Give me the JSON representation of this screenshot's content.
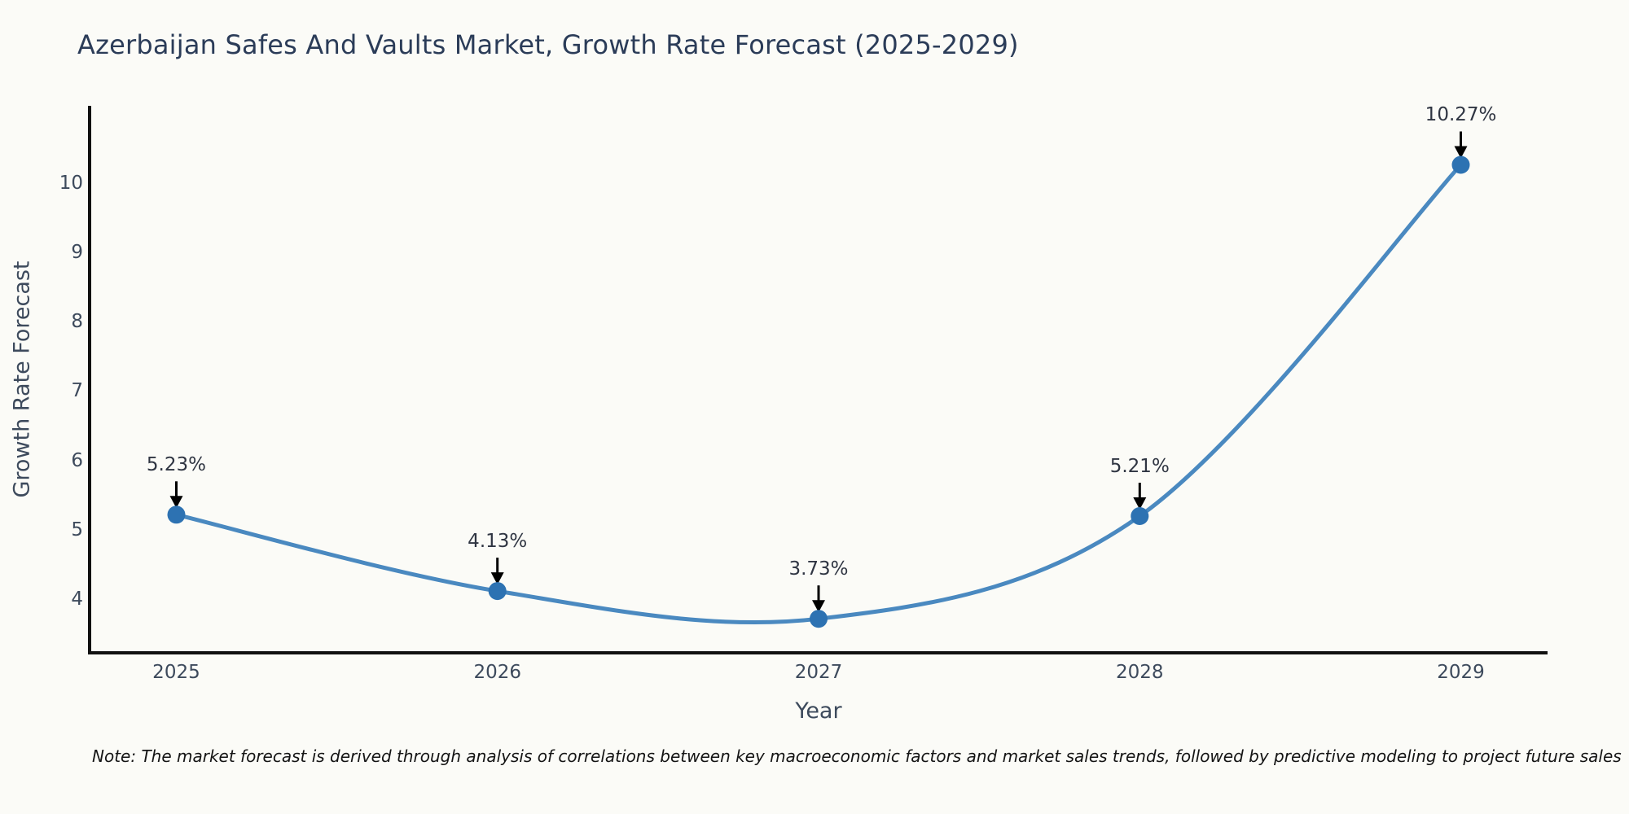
{
  "title": "Azerbaijan Safes And Vaults Market, Growth Rate Forecast (2025-2029)",
  "note": "Note: The market forecast is derived through analysis of correlations between key macroeconomic factors and market sales trends, followed by predictive modeling to project future sales",
  "chart_data": {
    "type": "line",
    "title": "Azerbaijan Safes And Vaults Market, Growth Rate Forecast (2025-2029)",
    "xlabel": "Year",
    "ylabel": "Growth Rate Forecast",
    "categories": [
      2025,
      2026,
      2027,
      2028,
      2029
    ],
    "values": [
      5.23,
      4.13,
      3.73,
      5.21,
      10.27
    ],
    "point_labels": [
      "5.23%",
      "4.13%",
      "3.73%",
      "5.21%",
      "10.27%"
    ],
    "x_tick_labels": [
      "2025",
      "2026",
      "2027",
      "2028",
      "2029"
    ],
    "y_ticks": [
      4,
      5,
      6,
      7,
      8,
      9,
      10
    ],
    "x_range": [
      2024.73,
      2029.27
    ],
    "y_range": [
      3.24,
      11.12
    ],
    "grid": false,
    "legend_position": "none",
    "line_color": "#4a89c0",
    "marker_color": "#2d72b2",
    "axis_color": "#111111",
    "arrow_color": "#000000",
    "tick_color": "#3d4a5c",
    "annotation_text_color": "#2f3542",
    "title_color": "#2b3c58",
    "background_color": "#fbfbf7"
  }
}
